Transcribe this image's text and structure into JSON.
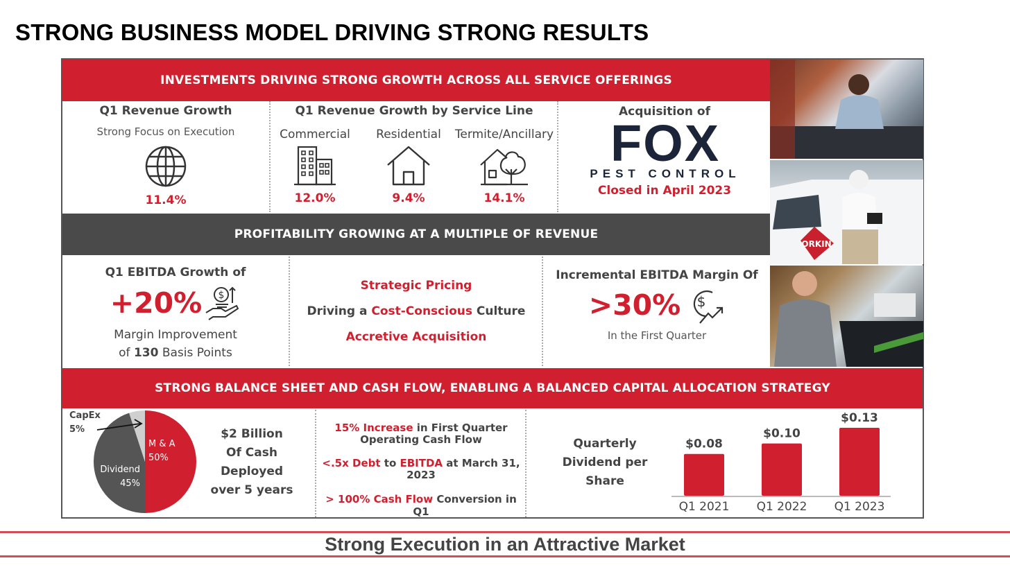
{
  "title": "STRONG BUSINESS MODEL DRIVING STRONG RESULTS",
  "band1": "INVESTMENTS DRIVING STRONG GROWTH ACROSS ALL SERVICE OFFERINGS",
  "band2": "PROFITABILITY GROWING AT A MULTIPLE OF REVENUE",
  "band3": "STRONG BALANCE SHEET AND CASH FLOW, ENABLING A BALANCED CAPITAL ALLOCATION STRATEGY",
  "revenue": {
    "heading": "Q1 Revenue Growth",
    "sub": "Strong Focus on Execution",
    "value": "11.4%",
    "icon": "globe-icon"
  },
  "service": {
    "heading": "Q1 Revenue Growth by Service Line",
    "items": [
      {
        "label": "Commercial",
        "value": "12.0%",
        "icon": "building-icon"
      },
      {
        "label": "Residential",
        "value": "9.4%",
        "icon": "house-icon"
      },
      {
        "label": "Termite/Ancillary",
        "value": "14.1%",
        "icon": "house-tree-icon"
      }
    ]
  },
  "acquisition": {
    "heading": "Acquisition of",
    "logo_main": "FOX",
    "logo_sub": "PEST CONTROL",
    "closed": "Closed in April 2023"
  },
  "ebitda": {
    "heading": "Q1 EBITDA Growth of",
    "value": "+20%",
    "line1": "Margin Improvement",
    "line2_pre": "of ",
    "line2_bold": "130",
    "line2_post": " Basis Points",
    "icon": "hand-coins-icon"
  },
  "strategy": {
    "l1": "Strategic Pricing",
    "l2_pre": "Driving a ",
    "l2_red": "Cost-Conscious",
    "l2_post": " Culture",
    "l3": "Accretive Acquisition"
  },
  "margin": {
    "heading": "Incremental EBITDA Margin Of",
    "value": ">30%",
    "sub": "In the First Quarter",
    "icon": "dollar-growth-icon"
  },
  "pie": {
    "slices": [
      {
        "name": "M & A",
        "value": 50,
        "label": "50%",
        "color": "#d0202f"
      },
      {
        "name": "Dividend",
        "value": 45,
        "label": "45%",
        "color": "#555555"
      },
      {
        "name": "CapEx",
        "value": 5,
        "label": "5%",
        "color": "#cfcfcf"
      }
    ]
  },
  "deployed": {
    "l1": "$2 Billion",
    "l2": "Of Cash",
    "l3": "Deployed",
    "l4": "over 5 years"
  },
  "cashflow": {
    "a_red": "15% Increase",
    "a_post": " in First Quarter",
    "a_l2": "Operating Cash Flow",
    "b_red1": "<.5x Debt",
    "b_mid": " to ",
    "b_red2": "EBITDA",
    "b_post": " at March 31,",
    "b_l2": "2023",
    "c_red": "> 100% Cash Flow",
    "c_post": " Conversion in Q1"
  },
  "dividend_label": {
    "l1": "Quarterly",
    "l2": "Dividend per",
    "l3": "Share"
  },
  "chart_data": {
    "type": "bar",
    "categories": [
      "Q1 2021",
      "Q1 2022",
      "Q1 2023"
    ],
    "values": [
      0.08,
      0.1,
      0.13
    ],
    "data_labels": [
      "$0.08",
      "$0.10",
      "$0.13"
    ],
    "title": "",
    "xlabel": "",
    "ylabel": "",
    "ylim": [
      0,
      0.13
    ]
  },
  "photos": [
    "technician-truck-photo",
    "technician-van-photo",
    "technician-tablet-photo"
  ],
  "footer": "Strong Execution in an Attractive Market"
}
